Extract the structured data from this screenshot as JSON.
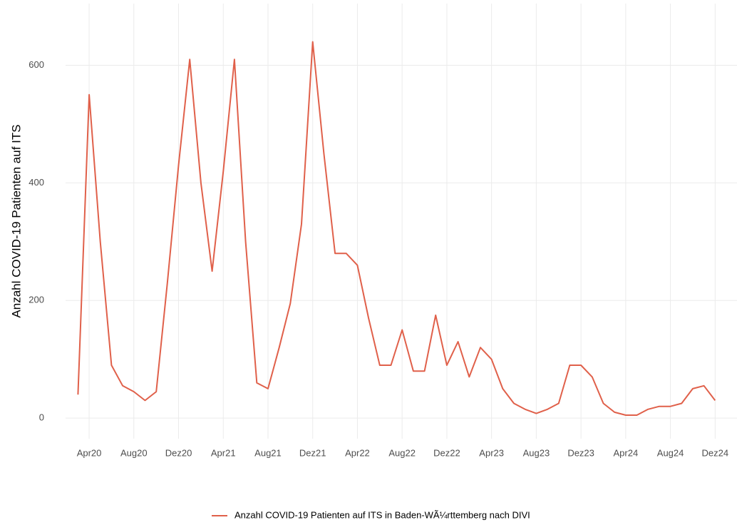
{
  "chart_data": {
    "type": "line",
    "y_label": "Anzahl COVID-19 Patienten auf ITS",
    "x": [
      "2020-03",
      "2020-04",
      "2020-05",
      "2020-06",
      "2020-07",
      "2020-08",
      "2020-09",
      "2020-10",
      "2020-11",
      "2020-12",
      "2021-01",
      "2021-02",
      "2021-03",
      "2021-04",
      "2021-05",
      "2021-06",
      "2021-07",
      "2021-08",
      "2021-09",
      "2021-10",
      "2021-11",
      "2021-12",
      "2022-01",
      "2022-02",
      "2022-03",
      "2022-04",
      "2022-05",
      "2022-06",
      "2022-07",
      "2022-08",
      "2022-09",
      "2022-10",
      "2022-11",
      "2022-12",
      "2023-01",
      "2023-02",
      "2023-03",
      "2023-04",
      "2023-05",
      "2023-06",
      "2023-07",
      "2023-08",
      "2023-09",
      "2023-10",
      "2023-11",
      "2023-12",
      "2024-01",
      "2024-02",
      "2024-03",
      "2024-04",
      "2024-05",
      "2024-06",
      "2024-07",
      "2024-08",
      "2024-09",
      "2024-10",
      "2024-11",
      "2024-12"
    ],
    "series": [
      {
        "name": "Anzahl COVID-19 Patienten auf ITS in Baden-WÃ¼rttemberg nach DIVI",
        "color": "#e0604a",
        "values": [
          40,
          550,
          300,
          90,
          55,
          45,
          30,
          45,
          230,
          430,
          610,
          400,
          250,
          420,
          610,
          300,
          60,
          50,
          120,
          195,
          330,
          640,
          450,
          280,
          280,
          260,
          170,
          90,
          90,
          150,
          80,
          80,
          175,
          90,
          130,
          70,
          120,
          100,
          50,
          25,
          15,
          8,
          15,
          25,
          90,
          90,
          70,
          25,
          10,
          5,
          5,
          15,
          20,
          20,
          25,
          50,
          55,
          30
        ]
      }
    ],
    "xlim": [
      "2020-01",
      "2025-01"
    ],
    "xticks": [
      {
        "value": "2020-04",
        "label": "Apr20"
      },
      {
        "value": "2020-08",
        "label": "Aug20"
      },
      {
        "value": "2020-12",
        "label": "Dez20"
      },
      {
        "value": "2021-04",
        "label": "Apr21"
      },
      {
        "value": "2021-08",
        "label": "Aug21"
      },
      {
        "value": "2021-12",
        "label": "Dez21"
      },
      {
        "value": "2022-04",
        "label": "Apr22"
      },
      {
        "value": "2022-08",
        "label": "Aug22"
      },
      {
        "value": "2022-12",
        "label": "Dez22"
      },
      {
        "value": "2023-04",
        "label": "Apr23"
      },
      {
        "value": "2023-08",
        "label": "Aug23"
      },
      {
        "value": "2023-12",
        "label": "Dez23"
      },
      {
        "value": "2024-04",
        "label": "Apr24"
      },
      {
        "value": "2024-08",
        "label": "Aug24"
      },
      {
        "value": "2024-12",
        "label": "Dez24"
      }
    ],
    "ylim": [
      -35,
      705
    ],
    "yticks": [
      0,
      200,
      400,
      600
    ],
    "grid": true,
    "legend": "bottom"
  }
}
